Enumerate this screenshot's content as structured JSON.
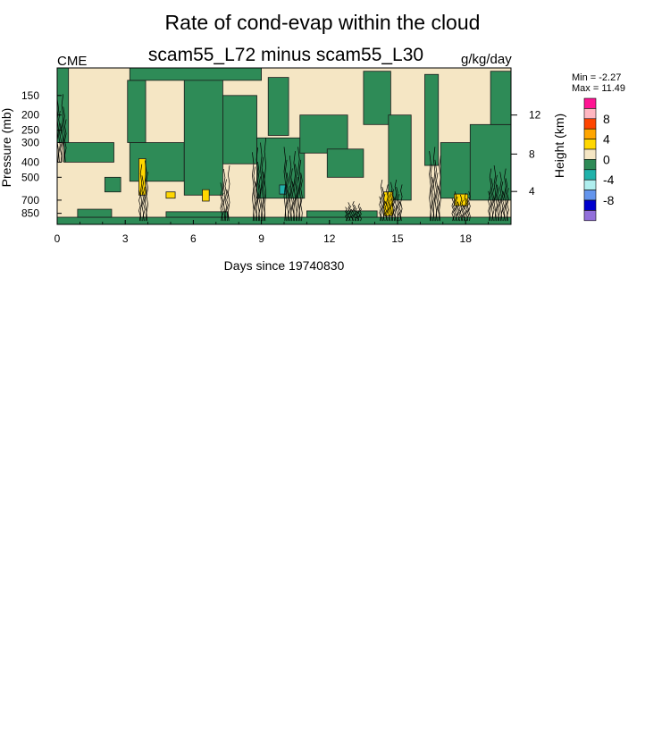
{
  "chart_data": {
    "type": "heatmap",
    "title": "Rate of cond-evap within the cloud",
    "subtitle": "scam55_L72 minus scam55_L30",
    "left_string": "CME",
    "units": "g/kg/day",
    "stats": {
      "min_text": "Min =  -2.27",
      "max_text": "Max =  11.49"
    },
    "xlabel": "Days since 19740830",
    "ylabel": "Pressure (mb)",
    "ylabel_right": "Height (km)",
    "xlim": [
      0,
      20
    ],
    "xticks": [
      0,
      3,
      6,
      9,
      12,
      15,
      18
    ],
    "ylim": [
      1000,
      100
    ],
    "ylog": true,
    "yticks": [
      150,
      200,
      250,
      300,
      400,
      500,
      700,
      850
    ],
    "height_ticks": [
      {
        "km": 12,
        "p": 200
      },
      {
        "km": 8,
        "p": 355
      },
      {
        "km": 4,
        "p": 616
      }
    ],
    "colorbar": {
      "labels": [
        "8",
        "4",
        "0",
        "-4",
        "-8"
      ],
      "colors": [
        "#ff1493",
        "#ffb6c1",
        "#ff4500",
        "#ffa500",
        "#ffd700",
        "#f5e6c4",
        "#2e8b57",
        "#20b2aa",
        "#afeeee",
        "#6495ed",
        "#0000cd",
        "#9370db"
      ]
    },
    "background_color": "#f5e6c4",
    "regions": [
      {
        "color": "#2e8b57",
        "x": [
          3.2,
          5.6
        ],
        "p": [
          530,
          300
        ]
      },
      {
        "color": "#2e8b57",
        "x": [
          3.1,
          3.9
        ],
        "p": [
          300,
          120
        ]
      },
      {
        "color": "#2e8b57",
        "x": [
          5.6,
          7.3
        ],
        "p": [
          650,
          105
        ]
      },
      {
        "color": "#2e8b57",
        "x": [
          7.3,
          8.8
        ],
        "p": [
          410,
          150
        ]
      },
      {
        "color": "#2e8b57",
        "x": [
          8.8,
          10.9
        ],
        "p": [
          680,
          280
        ]
      },
      {
        "color": "#2e8b57",
        "x": [
          9.3,
          10.2
        ],
        "p": [
          270,
          115
        ]
      },
      {
        "color": "#2e8b57",
        "x": [
          10.7,
          12.8
        ],
        "p": [
          350,
          200
        ]
      },
      {
        "color": "#2e8b57",
        "x": [
          11.9,
          13.5
        ],
        "p": [
          500,
          330
        ]
      },
      {
        "color": "#2e8b57",
        "x": [
          13.5,
          14.7
        ],
        "p": [
          230,
          105
        ]
      },
      {
        "color": "#2e8b57",
        "x": [
          14.6,
          15.6
        ],
        "p": [
          700,
          200
        ]
      },
      {
        "color": "#2e8b57",
        "x": [
          16.2,
          16.8
        ],
        "p": [
          420,
          110
        ]
      },
      {
        "color": "#2e8b57",
        "x": [
          16.9,
          18.3
        ],
        "p": [
          680,
          300
        ]
      },
      {
        "color": "#2e8b57",
        "x": [
          18.2,
          20
        ],
        "p": [
          700,
          230
        ]
      },
      {
        "color": "#2e8b57",
        "x": [
          19.1,
          20
        ],
        "p": [
          230,
          105
        ]
      },
      {
        "color": "#2e8b57",
        "x": [
          3.2,
          9.0
        ],
        "p": [
          100,
          120
        ]
      },
      {
        "color": "#2e8b57",
        "x": [
          0.0,
          0.5
        ],
        "p": [
          100,
          300
        ]
      },
      {
        "color": "#2e8b57",
        "x": [
          0.3,
          2.5
        ],
        "p": [
          300,
          400
        ]
      },
      {
        "color": "#2e8b57",
        "x": [
          2.1,
          2.8
        ],
        "p": [
          500,
          620
        ]
      },
      {
        "color": "#2e8b57",
        "x": [
          0.0,
          20
        ],
        "p": [
          900,
          1000
        ]
      },
      {
        "color": "#2e8b57",
        "x": [
          0.9,
          2.4
        ],
        "p": [
          800,
          900
        ]
      },
      {
        "color": "#2e8b57",
        "x": [
          4.8,
          7.5
        ],
        "p": [
          830,
          900
        ]
      },
      {
        "color": "#2e8b57",
        "x": [
          11.0,
          14.1
        ],
        "p": [
          820,
          900
        ]
      },
      {
        "color": "#ffd700",
        "x": [
          3.6,
          3.9
        ],
        "p": [
          650,
          380
        ]
      },
      {
        "color": "#ffd700",
        "x": [
          6.4,
          6.7
        ],
        "p": [
          710,
          600
        ]
      },
      {
        "color": "#ffd700",
        "x": [
          4.8,
          5.2
        ],
        "p": [
          680,
          620
        ]
      },
      {
        "color": "#ffd700",
        "x": [
          14.4,
          14.8
        ],
        "p": [
          880,
          620
        ]
      },
      {
        "color": "#ffd700",
        "x": [
          17.5,
          18.1
        ],
        "p": [
          760,
          640
        ]
      },
      {
        "color": "#20b2aa",
        "x": [
          9.8,
          10.1
        ],
        "p": [
          640,
          560
        ]
      }
    ],
    "contour_bands": [
      {
        "x": [
          3.6,
          4.0
        ],
        "p": [
          950,
          350
        ]
      },
      {
        "x": [
          7.2,
          7.6
        ],
        "p": [
          950,
          380
        ]
      },
      {
        "x": [
          8.6,
          9.2
        ],
        "p": [
          950,
          260
        ]
      },
      {
        "x": [
          10.0,
          10.8
        ],
        "p": [
          950,
          300
        ]
      },
      {
        "x": [
          14.2,
          15.2
        ],
        "p": [
          950,
          500
        ]
      },
      {
        "x": [
          17.4,
          18.2
        ],
        "p": [
          950,
          600
        ]
      },
      {
        "x": [
          16.4,
          16.9
        ],
        "p": [
          950,
          300
        ]
      },
      {
        "x": [
          19.0,
          19.9
        ],
        "p": [
          950,
          400
        ]
      },
      {
        "x": [
          12.7,
          13.4
        ],
        "p": [
          950,
          700
        ]
      },
      {
        "x": [
          0.0,
          0.4
        ],
        "p": [
          400,
          130
        ]
      }
    ]
  }
}
